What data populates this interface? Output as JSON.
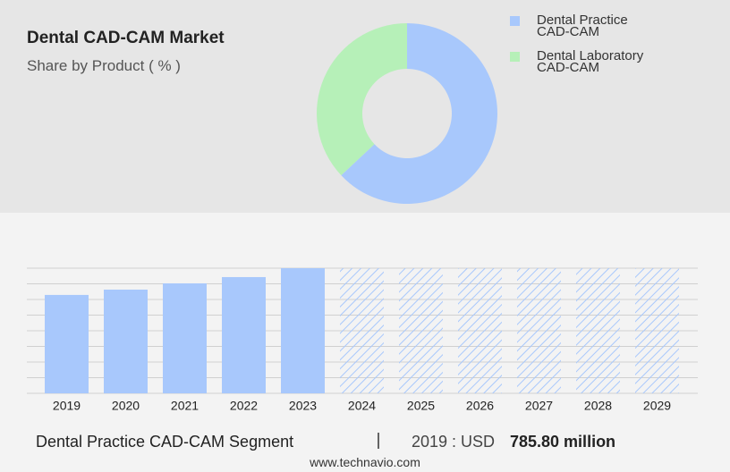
{
  "chart_data": [
    {
      "type": "pie",
      "title": "Dental CAD-CAM Market",
      "subtitle": "Share by Product ( % )",
      "categories": [
        "Dental Practice CAD-CAM",
        "Dental Laboratory CAD-CAM"
      ],
      "values": [
        63,
        37
      ],
      "colors": [
        "#a8c8fc",
        "#b6f0b8"
      ]
    },
    {
      "type": "bar",
      "categories": [
        "2019",
        "2020",
        "2021",
        "2022",
        "2023",
        "2024",
        "2025",
        "2026",
        "2027",
        "2028",
        "2029"
      ],
      "values": [
        6.29,
        6.63,
        7.03,
        7.43,
        8,
        8,
        8,
        8,
        8,
        8,
        8
      ],
      "hatched": [
        false,
        false,
        false,
        false,
        false,
        true,
        true,
        true,
        true,
        true,
        true
      ],
      "color": "#a8c8fc",
      "ylim": [
        0,
        8
      ],
      "yticks": [
        0,
        1,
        2,
        3,
        4,
        5,
        6,
        7,
        8
      ],
      "grid": true
    }
  ],
  "footer": {
    "segment": "Dental Practice CAD-CAM Segment",
    "prefix": "2019 : USD",
    "value_label": "785.80 million",
    "source": "www.technavio.com"
  }
}
